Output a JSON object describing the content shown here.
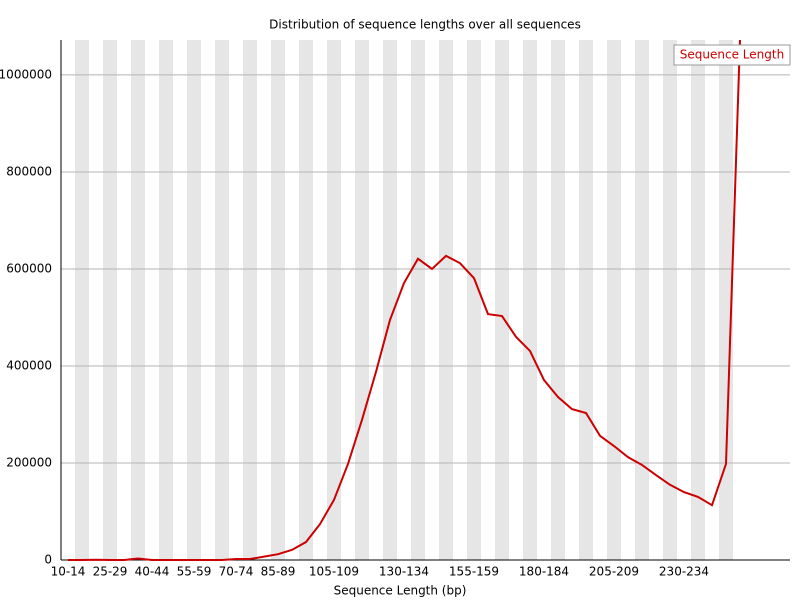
{
  "chart_data": {
    "type": "line",
    "title": "Distribution of sequence lengths over all sequences",
    "x_label": "Sequence Length (bp)",
    "categories": [
      "10-14",
      null,
      null,
      "25-29",
      null,
      null,
      "40-44",
      null,
      null,
      "55-59",
      null,
      null,
      "70-74",
      null,
      null,
      "85-89",
      null,
      null,
      null,
      "105-109",
      null,
      null,
      null,
      null,
      "130-134",
      null,
      null,
      null,
      null,
      "155-159",
      null,
      null,
      null,
      null,
      "180-184",
      null,
      null,
      null,
      null,
      "205-209",
      null,
      null,
      null,
      null,
      "230-234",
      null,
      null,
      null,
      null
    ],
    "series": [
      {
        "name": "Sequence Length",
        "color": "#cc0000",
        "values": [
          0,
          0,
          500,
          0,
          0,
          3000,
          0,
          0,
          0,
          0,
          0,
          0,
          2000,
          2000,
          7000,
          12000,
          21000,
          37000,
          74000,
          124000,
          198000,
          289000,
          388000,
          495000,
          571000,
          621000,
          600000,
          627000,
          612000,
          581000,
          507000,
          503000,
          460000,
          431000,
          371000,
          336000,
          311000,
          303000,
          256000,
          235000,
          212000,
          196000,
          175000,
          155000,
          140000,
          130000,
          113000,
          198000,
          1072000
        ]
      }
    ],
    "ylim": [
      0,
      1072000
    ],
    "yticks": [
      0,
      200000,
      400000,
      600000,
      800000,
      1000000
    ],
    "grid": true,
    "legend": "top-right"
  }
}
